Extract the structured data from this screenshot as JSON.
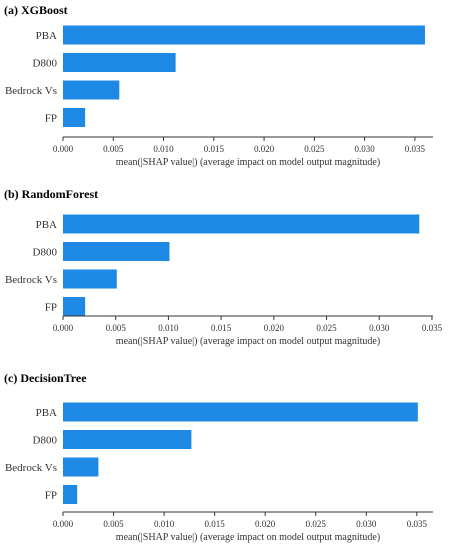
{
  "chart_data": [
    {
      "type": "bar",
      "orientation": "horizontal",
      "title": "(a) XGBoost",
      "categories": [
        "PBA",
        "D800",
        "Bedrock Vs",
        "FP"
      ],
      "values": [
        0.036,
        0.0112,
        0.0056,
        0.0022
      ],
      "xlabel": "mean(|SHAP value|) (average impact on model output magnitude)",
      "xticks": [
        "0.000",
        "0.005",
        "0.010",
        "0.015",
        "0.020",
        "0.025",
        "0.030",
        "0.035"
      ],
      "xtick_values": [
        0,
        0.005,
        0.01,
        0.015,
        0.02,
        0.025,
        0.03,
        0.035
      ],
      "xlim": [
        0,
        0.0368
      ],
      "bar_color": "#1e88e5",
      "grid": false
    },
    {
      "type": "bar",
      "orientation": "horizontal",
      "title": "(b) RandomForest",
      "categories": [
        "PBA",
        "D800",
        "Bedrock Vs",
        "FP"
      ],
      "values": [
        0.0338,
        0.0101,
        0.0051,
        0.0021
      ],
      "xlabel": "mean(|SHAP value|) (average impact on model output magnitude)",
      "xticks": [
        "0.000",
        "0.005",
        "0.010",
        "0.015",
        "0.020",
        "0.025",
        "0.030",
        "0.035"
      ],
      "xtick_values": [
        0,
        0.005,
        0.01,
        0.015,
        0.02,
        0.025,
        0.03,
        0.035
      ],
      "xlim": [
        0,
        0.0351
      ],
      "bar_color": "#1e88e5",
      "grid": false
    },
    {
      "type": "bar",
      "orientation": "horizontal",
      "title": "(c) DecisionTree",
      "categories": [
        "PBA",
        "D800",
        "Bedrock Vs",
        "FP"
      ],
      "values": [
        0.0351,
        0.0127,
        0.0035,
        0.0014
      ],
      "xlabel": "mean(|SHAP value|) (average impact on model output magnitude)",
      "xticks": [
        "0.000",
        "0.005",
        "0.010",
        "0.015",
        "0.020",
        "0.025",
        "0.030",
        "0.035"
      ],
      "xtick_values": [
        0,
        0.005,
        0.01,
        0.015,
        0.02,
        0.025,
        0.03,
        0.035
      ],
      "xlim": [
        0,
        0.0366
      ],
      "bar_color": "#1e88e5",
      "grid": false
    }
  ]
}
